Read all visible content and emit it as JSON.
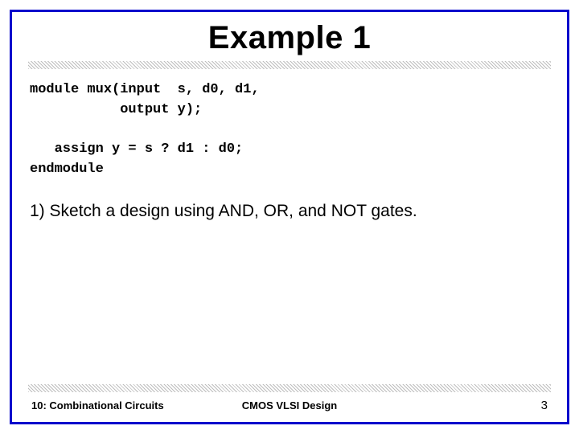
{
  "title": "Example 1",
  "code": {
    "line1": "module mux(input  s, d0, d1,",
    "line2": "           output y);",
    "line3": "",
    "line4": "   assign y = s ? d1 : d0;",
    "line5": "endmodule"
  },
  "body_text": "1) Sketch a design using AND, OR, and NOT gates.",
  "footer": {
    "left": "10: Combinational Circuits",
    "center": "CMOS VLSI Design",
    "page": "3"
  },
  "colors": {
    "border": "#0000cc",
    "text": "#000000",
    "background": "#ffffff"
  },
  "fonts": {
    "title_size": 40,
    "code_size": 17,
    "body_size": 21,
    "footer_size": 13
  }
}
